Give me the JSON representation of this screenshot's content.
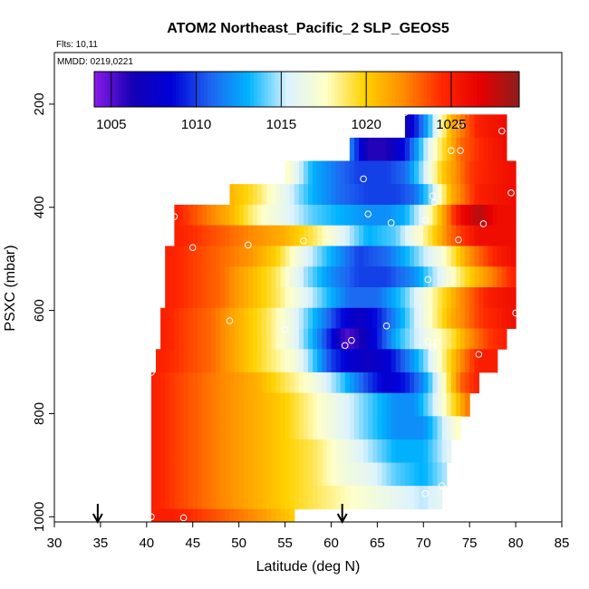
{
  "chart_data": {
    "type": "heatmap",
    "title": "ATOM2 Northeast_Pacific_2 SLP_GEOS5",
    "flights_note": "Flts: 10,11",
    "dates_note": "MMDD: 0219,0221",
    "xlabel": "Latitude (deg N)",
    "ylabel": "PSXC (mbar)",
    "xlim": [
      30,
      85
    ],
    "ylim": [
      1010,
      100
    ],
    "x_ticks": [
      30,
      35,
      40,
      45,
      50,
      55,
      60,
      65,
      70,
      75,
      80,
      85
    ],
    "y_ticks": [
      200,
      400,
      600,
      800,
      1000
    ],
    "colorbar": {
      "range": [
        1004,
        1029
      ],
      "ticks": [
        1005,
        1010,
        1015,
        1020,
        1025
      ]
    },
    "colors": {
      "ramp": [
        "#8a1be8",
        "#1400b4",
        "#0000d8",
        "#1e64f0",
        "#00b4ff",
        "#dcf2ff",
        "#ffffc8",
        "#ffd200",
        "#ff8c00",
        "#ff2800",
        "#e60000",
        "#8c1e1e"
      ]
    },
    "arrows_at_latitude": [
      34.7,
      61.2
    ],
    "layers": [
      {
        "p_top": 220,
        "p_bot": 265,
        "x_start": 68,
        "x_end": 79,
        "nodes": [
          [
            68,
            1006
          ],
          [
            70.5,
            1013
          ],
          [
            73,
            1021
          ],
          [
            76,
            1025
          ],
          [
            79,
            1026
          ]
        ]
      },
      {
        "p_top": 265,
        "p_bot": 310,
        "x_start": 62,
        "x_end": 79,
        "nodes": [
          [
            62,
            1012
          ],
          [
            64,
            1006
          ],
          [
            66,
            1006
          ],
          [
            68,
            1009
          ],
          [
            71,
            1017
          ],
          [
            74,
            1023
          ],
          [
            77,
            1025
          ],
          [
            79,
            1026
          ]
        ]
      },
      {
        "p_top": 310,
        "p_bot": 355,
        "x_start": 55,
        "x_end": 80,
        "nodes": [
          [
            55,
            1018
          ],
          [
            58,
            1013
          ],
          [
            61,
            1011
          ],
          [
            63,
            1010
          ],
          [
            66,
            1010
          ],
          [
            68,
            1011
          ],
          [
            70,
            1015
          ],
          [
            72,
            1020
          ],
          [
            75,
            1024
          ],
          [
            77,
            1025
          ],
          [
            80,
            1026
          ]
        ]
      },
      {
        "p_top": 355,
        "p_bot": 395,
        "x_start": 49,
        "x_end": 80,
        "nodes": [
          [
            49,
            1021
          ],
          [
            52,
            1019
          ],
          [
            55,
            1016
          ],
          [
            58,
            1013
          ],
          [
            61,
            1011
          ],
          [
            64,
            1010
          ],
          [
            67,
            1010
          ],
          [
            69,
            1011
          ],
          [
            71,
            1015
          ],
          [
            73,
            1021
          ],
          [
            76,
            1025
          ],
          [
            80,
            1026
          ]
        ]
      },
      {
        "p_top": 395,
        "p_bot": 435,
        "x_start": 43,
        "x_end": 80,
        "nodes": [
          [
            43,
            1025
          ],
          [
            46,
            1023
          ],
          [
            49,
            1021
          ],
          [
            52,
            1018
          ],
          [
            55,
            1016
          ],
          [
            58,
            1014
          ],
          [
            61,
            1013
          ],
          [
            64,
            1012
          ],
          [
            66,
            1012
          ],
          [
            68,
            1013
          ],
          [
            70,
            1016
          ],
          [
            72,
            1021
          ],
          [
            74,
            1026
          ],
          [
            76,
            1028
          ],
          [
            78,
            1026
          ],
          [
            80,
            1026
          ]
        ]
      },
      {
        "p_top": 435,
        "p_bot": 475,
        "x_start": 43,
        "x_end": 80,
        "nodes": [
          [
            43,
            1025
          ],
          [
            46,
            1024
          ],
          [
            49,
            1023
          ],
          [
            52,
            1022
          ],
          [
            55,
            1021
          ],
          [
            58,
            1019
          ],
          [
            61,
            1016
          ],
          [
            64,
            1013
          ],
          [
            67,
            1014
          ],
          [
            70,
            1018
          ],
          [
            73,
            1023
          ],
          [
            76,
            1026
          ],
          [
            80,
            1026
          ]
        ]
      },
      {
        "p_top": 475,
        "p_bot": 515,
        "x_start": 42,
        "x_end": 80,
        "nodes": [
          [
            42,
            1025
          ],
          [
            45,
            1024
          ],
          [
            48,
            1023
          ],
          [
            51,
            1022
          ],
          [
            54,
            1020
          ],
          [
            57,
            1016
          ],
          [
            60,
            1013
          ],
          [
            63,
            1010
          ],
          [
            66,
            1011
          ],
          [
            69,
            1014
          ],
          [
            72,
            1017
          ],
          [
            75,
            1022
          ],
          [
            78,
            1025
          ],
          [
            80,
            1026
          ]
        ]
      },
      {
        "p_top": 515,
        "p_bot": 555,
        "x_start": 42,
        "x_end": 80,
        "nodes": [
          [
            42,
            1025
          ],
          [
            45,
            1024
          ],
          [
            48,
            1023
          ],
          [
            51,
            1021
          ],
          [
            54,
            1019
          ],
          [
            57,
            1015
          ],
          [
            60,
            1012
          ],
          [
            63,
            1010
          ],
          [
            66,
            1010
          ],
          [
            69,
            1012
          ],
          [
            72,
            1016
          ],
          [
            75,
            1020
          ],
          [
            78,
            1023
          ],
          [
            80,
            1025
          ]
        ]
      },
      {
        "p_top": 555,
        "p_bot": 595,
        "x_start": 42,
        "x_end": 80,
        "nodes": [
          [
            42,
            1025
          ],
          [
            45,
            1024
          ],
          [
            48,
            1023
          ],
          [
            51,
            1021
          ],
          [
            54,
            1019
          ],
          [
            57,
            1016
          ],
          [
            60,
            1013
          ],
          [
            62,
            1011
          ],
          [
            65,
            1011
          ],
          [
            68,
            1014
          ],
          [
            71,
            1018
          ],
          [
            74,
            1022
          ],
          [
            77,
            1025
          ],
          [
            80,
            1026
          ]
        ]
      },
      {
        "p_top": 595,
        "p_bot": 635,
        "x_start": 41.5,
        "x_end": 80,
        "nodes": [
          [
            41.5,
            1025
          ],
          [
            44,
            1024
          ],
          [
            47,
            1023
          ],
          [
            50,
            1021
          ],
          [
            53,
            1019
          ],
          [
            56,
            1016
          ],
          [
            59,
            1012
          ],
          [
            61,
            1009
          ],
          [
            63,
            1007
          ],
          [
            65,
            1009
          ],
          [
            67,
            1012
          ],
          [
            69,
            1015
          ],
          [
            71,
            1018
          ],
          [
            73,
            1021
          ],
          [
            76,
            1024
          ],
          [
            80,
            1026
          ]
        ]
      },
      {
        "p_top": 635,
        "p_bot": 675,
        "x_start": 41.5,
        "x_end": 79,
        "nodes": [
          [
            41.5,
            1025
          ],
          [
            44,
            1024
          ],
          [
            47,
            1023
          ],
          [
            50,
            1021
          ],
          [
            53,
            1019
          ],
          [
            56,
            1016
          ],
          [
            58,
            1013
          ],
          [
            60,
            1009
          ],
          [
            61.5,
            1005
          ],
          [
            63,
            1006
          ],
          [
            65,
            1009
          ],
          [
            67,
            1013
          ],
          [
            69,
            1015
          ],
          [
            71,
            1017
          ],
          [
            73,
            1019
          ],
          [
            75,
            1022
          ],
          [
            77,
            1024
          ],
          [
            79,
            1025
          ]
        ]
      },
      {
        "p_top": 675,
        "p_bot": 720,
        "x_start": 41,
        "x_end": 78,
        "nodes": [
          [
            41,
            1025
          ],
          [
            44,
            1024
          ],
          [
            47,
            1023
          ],
          [
            50,
            1021
          ],
          [
            53,
            1019
          ],
          [
            56,
            1017
          ],
          [
            58,
            1014
          ],
          [
            60,
            1010
          ],
          [
            62,
            1008
          ],
          [
            64,
            1007
          ],
          [
            66,
            1008
          ],
          [
            68,
            1011
          ],
          [
            70,
            1014
          ],
          [
            72,
            1018
          ],
          [
            74,
            1022
          ],
          [
            76,
            1025
          ],
          [
            78,
            1025
          ]
        ]
      },
      {
        "p_top": 720,
        "p_bot": 760,
        "x_start": 40.5,
        "x_end": 76,
        "nodes": [
          [
            40.5,
            1025
          ],
          [
            43,
            1024
          ],
          [
            46,
            1023
          ],
          [
            49,
            1022
          ],
          [
            52,
            1021
          ],
          [
            55,
            1019
          ],
          [
            58,
            1017
          ],
          [
            61,
            1014
          ],
          [
            64,
            1010
          ],
          [
            66,
            1008
          ],
          [
            68,
            1009
          ],
          [
            70,
            1012
          ],
          [
            72,
            1017
          ],
          [
            74,
            1023
          ],
          [
            76,
            1025
          ]
        ]
      },
      {
        "p_top": 760,
        "p_bot": 805,
        "x_start": 40.5,
        "x_end": 75,
        "nodes": [
          [
            40.5,
            1025
          ],
          [
            43,
            1024
          ],
          [
            46,
            1023
          ],
          [
            49,
            1022
          ],
          [
            52,
            1021
          ],
          [
            55,
            1020
          ],
          [
            58,
            1018
          ],
          [
            61,
            1016
          ],
          [
            64,
            1014
          ],
          [
            67,
            1012
          ],
          [
            69,
            1012
          ],
          [
            71,
            1015
          ],
          [
            73,
            1019
          ],
          [
            75,
            1023
          ]
        ]
      },
      {
        "p_top": 805,
        "p_bot": 850,
        "x_start": 40.5,
        "x_end": 74,
        "nodes": [
          [
            40.5,
            1025
          ],
          [
            43,
            1024
          ],
          [
            46,
            1023
          ],
          [
            49,
            1022
          ],
          [
            52,
            1021
          ],
          [
            55,
            1020
          ],
          [
            58,
            1018
          ],
          [
            61,
            1016
          ],
          [
            64,
            1014
          ],
          [
            67,
            1012
          ],
          [
            70,
            1012
          ],
          [
            72,
            1015
          ],
          [
            74,
            1018
          ]
        ]
      },
      {
        "p_top": 850,
        "p_bot": 895,
        "x_start": 40.5,
        "x_end": 73,
        "nodes": [
          [
            40.5,
            1025
          ],
          [
            43,
            1024
          ],
          [
            46,
            1023
          ],
          [
            49,
            1022
          ],
          [
            52,
            1021
          ],
          [
            55,
            1020
          ],
          [
            58,
            1019
          ],
          [
            61,
            1017
          ],
          [
            64,
            1015
          ],
          [
            67,
            1013
          ],
          [
            70,
            1013
          ],
          [
            73,
            1016
          ]
        ]
      },
      {
        "p_top": 895,
        "p_bot": 940,
        "x_start": 40.5,
        "x_end": 72.5,
        "nodes": [
          [
            40.5,
            1025
          ],
          [
            43,
            1024
          ],
          [
            46,
            1023
          ],
          [
            49,
            1022
          ],
          [
            52,
            1021
          ],
          [
            55,
            1020
          ],
          [
            58,
            1019
          ],
          [
            61,
            1017
          ],
          [
            64,
            1016
          ],
          [
            67,
            1014
          ],
          [
            70,
            1013
          ],
          [
            72.5,
            1015
          ]
        ]
      },
      {
        "p_top": 940,
        "p_bot": 985,
        "x_start": 40.5,
        "x_end": 72,
        "nodes": [
          [
            40.5,
            1025
          ],
          [
            43,
            1024
          ],
          [
            46,
            1023
          ],
          [
            49,
            1022
          ],
          [
            52,
            1021
          ],
          [
            55,
            1020
          ],
          [
            58,
            1019
          ],
          [
            61,
            1018
          ],
          [
            64,
            1017
          ],
          [
            67,
            1016
          ],
          [
            70,
            1015
          ],
          [
            72,
            1016
          ]
        ]
      },
      {
        "p_top": 985,
        "p_bot": 1010,
        "x_start": 40.5,
        "x_end": 56,
        "nodes": [
          [
            40.5,
            1025
          ],
          [
            43,
            1025
          ],
          [
            46,
            1024
          ],
          [
            49,
            1023
          ],
          [
            52,
            1022
          ],
          [
            54,
            1021
          ],
          [
            56,
            1020
          ]
        ]
      }
    ],
    "points": [
      [
        68,
        216
      ],
      [
        74,
        240
      ],
      [
        78.5,
        252
      ],
      [
        73,
        290
      ],
      [
        74,
        290
      ],
      [
        63.5,
        345
      ],
      [
        71,
        378
      ],
      [
        71.2,
        390
      ],
      [
        79.5,
        372
      ],
      [
        64,
        413
      ],
      [
        66.5,
        430
      ],
      [
        70.2,
        425
      ],
      [
        76.5,
        432
      ],
      [
        73.8,
        463
      ],
      [
        57,
        465
      ],
      [
        43,
        418
      ],
      [
        45,
        478
      ],
      [
        51,
        473
      ],
      [
        70.5,
        540
      ],
      [
        55,
        637
      ],
      [
        49,
        620
      ],
      [
        66,
        630
      ],
      [
        80,
        605
      ],
      [
        61.5,
        668
      ],
      [
        62.2,
        658
      ],
      [
        70.5,
        660
      ],
      [
        71,
        672
      ],
      [
        71.5,
        662
      ],
      [
        76,
        685
      ],
      [
        40.5,
        720
      ],
      [
        70.2,
        955
      ],
      [
        72,
        940
      ],
      [
        40.5,
        1000
      ],
      [
        44,
        1002
      ]
    ]
  }
}
